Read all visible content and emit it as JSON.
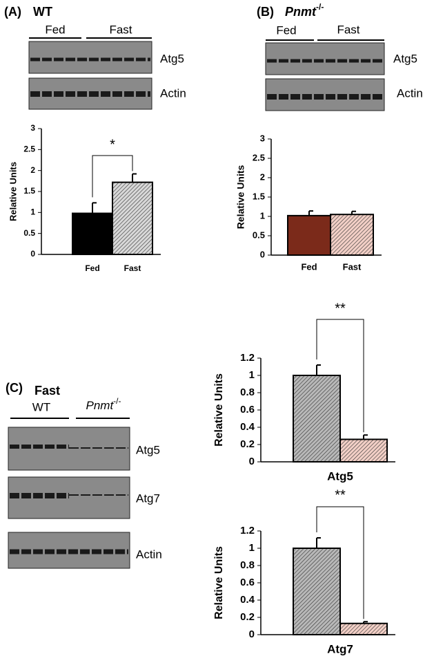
{
  "panels": [
    {
      "label": "(A)",
      "title": "WT",
      "groups": [
        "Fed",
        "Fast"
      ],
      "blots": [
        "Atg5",
        "Actin"
      ]
    },
    {
      "label": "(B)",
      "title": "Pnmt",
      "title_sup": "-/-",
      "groups": [
        "Fed",
        "Fast"
      ],
      "blots": [
        "Atg5",
        "Actin"
      ]
    },
    {
      "label": "(C)",
      "title": "Fast",
      "groups": [
        "WT",
        "Pnmt"
      ],
      "group_sup": "-/-",
      "blots": [
        "Atg5",
        "Atg7",
        "Actin"
      ]
    }
  ],
  "chart_data": [
    {
      "type": "bar",
      "categories": [
        "Fed",
        "Fast"
      ],
      "values": [
        0.98,
        1.72
      ],
      "errors": [
        0.25,
        0.2
      ],
      "colors": [
        "#000000",
        "#d8d8d8"
      ],
      "hatch": [
        false,
        true
      ],
      "ylabel": "Relative Units",
      "ylim": [
        0,
        3
      ],
      "yticks": [
        0,
        0.5,
        1,
        1.5,
        2,
        2.5,
        3
      ],
      "annotation": "*"
    },
    {
      "type": "bar",
      "categories": [
        "Fed",
        "Fast"
      ],
      "values": [
        1.02,
        1.05
      ],
      "errors": [
        0.12,
        0.08
      ],
      "colors": [
        "#7b2a1a",
        "#f2cfc6"
      ],
      "hatch": [
        false,
        true
      ],
      "ylabel": "Relative Units",
      "ylim": [
        0,
        3
      ],
      "yticks": [
        0,
        0.5,
        1,
        1.5,
        2,
        2.5,
        3
      ]
    },
    {
      "type": "bar",
      "categories": [
        null,
        null
      ],
      "values": [
        1.0,
        0.26
      ],
      "errors": [
        0.12,
        0.05
      ],
      "colors": [
        "#b8b8b8",
        "#f2cfc6"
      ],
      "hatch": [
        true,
        true
      ],
      "ylabel": "Relative Units",
      "xlabel": "Atg5",
      "ylim": [
        0,
        1.2
      ],
      "yticks": [
        0,
        0.2,
        0.4,
        0.6,
        0.8,
        1,
        1.2
      ],
      "annotation": "**"
    },
    {
      "type": "bar",
      "categories": [
        null,
        null
      ],
      "values": [
        1.0,
        0.13
      ],
      "errors": [
        0.12,
        0.02
      ],
      "colors": [
        "#b8b8b8",
        "#f2cfc6"
      ],
      "hatch": [
        true,
        true
      ],
      "ylabel": "Relative Units",
      "xlabel": "Atg7",
      "ylim": [
        0,
        1.2
      ],
      "yticks": [
        0,
        0.2,
        0.4,
        0.6,
        0.8,
        1,
        1.2
      ],
      "annotation": "**"
    }
  ]
}
